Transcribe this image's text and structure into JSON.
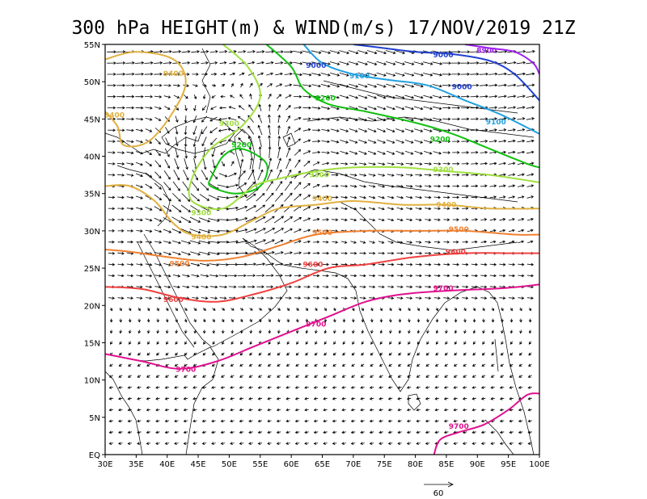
{
  "title": "300 hPa HEIGHT(m) & WIND(m/s) 17/NOV/2019 21Z",
  "axes": {
    "lon_labels": [
      "30E",
      "35E",
      "40E",
      "45E",
      "50E",
      "55E",
      "60E",
      "65E",
      "70E",
      "75E",
      "80E",
      "85E",
      "90E",
      "95E",
      "100E"
    ],
    "lat_labels": [
      "EQ",
      "5N",
      "10N",
      "15N",
      "20N",
      "25N",
      "30N",
      "35N",
      "40N",
      "45N",
      "50N",
      "55N"
    ],
    "lon_range": [
      30,
      100
    ],
    "lat_range": [
      0,
      55
    ]
  },
  "reference_vector": {
    "label": "60",
    "speed": 60
  },
  "contour_colors": {
    "8900": "#a020f0",
    "9000": "#2040d0",
    "9100": "#20a0e0",
    "9200": "#10c010",
    "9300": "#a0e040",
    "9400": "#e0b040",
    "9500": "#f08030",
    "9600": "#f04040",
    "9700": "#e0108e"
  },
  "contours": [
    {
      "level": "8900",
      "points": [
        [
          88,
          55
        ],
        [
          92,
          54.5
        ],
        [
          96,
          54
        ],
        [
          99,
          52.5
        ],
        [
          100,
          51
        ]
      ]
    },
    {
      "level": "9000",
      "points": [
        [
          70,
          55
        ],
        [
          75,
          54.5
        ],
        [
          80,
          54
        ],
        [
          86,
          53.7
        ],
        [
          92,
          52.8
        ],
        [
          96,
          51
        ],
        [
          100,
          47.5
        ]
      ]
    },
    {
      "level": "9100",
      "points": [
        [
          62,
          55
        ],
        [
          65,
          52.5
        ],
        [
          70,
          51
        ],
        [
          76,
          50.2
        ],
        [
          82,
          49.5
        ],
        [
          88,
          47.5
        ],
        [
          94,
          45.5
        ],
        [
          100,
          43
        ]
      ]
    },
    {
      "level": "9200",
      "points": [
        [
          56,
          55
        ],
        [
          60,
          52
        ],
        [
          62,
          49
        ],
        [
          66,
          47
        ],
        [
          72,
          46
        ],
        [
          80,
          44.5
        ],
        [
          86,
          43
        ],
        [
          92,
          41
        ],
        [
          98,
          39
        ],
        [
          100,
          38.5
        ]
      ]
    },
    {
      "level": "9200",
      "points": [
        [
          47,
          37
        ],
        [
          49,
          40
        ],
        [
          52,
          41
        ],
        [
          56,
          39
        ],
        [
          55,
          36
        ],
        [
          51,
          35
        ],
        [
          47,
          36
        ],
        [
          47,
          37
        ]
      ]
    },
    {
      "level": "9300",
      "points": [
        [
          49,
          55
        ],
        [
          53,
          52
        ],
        [
          55,
          48
        ],
        [
          52,
          44
        ],
        [
          47,
          41
        ],
        [
          44,
          37
        ],
        [
          44,
          34
        ],
        [
          49,
          33
        ],
        [
          54,
          36
        ],
        [
          58,
          37
        ],
        [
          64,
          38
        ],
        [
          70,
          38.5
        ],
        [
          78,
          38.5
        ],
        [
          85,
          38
        ],
        [
          92,
          37.5
        ],
        [
          100,
          36.5
        ]
      ]
    },
    {
      "level": "9400",
      "points": [
        [
          30,
          53
        ],
        [
          35,
          54
        ],
        [
          41,
          53
        ],
        [
          43,
          50
        ],
        [
          41,
          46
        ],
        [
          37,
          42
        ],
        [
          33,
          41.5
        ],
        [
          32,
          44
        ],
        [
          30,
          46
        ]
      ]
    },
    {
      "level": "9400",
      "points": [
        [
          30,
          36
        ],
        [
          34,
          36
        ],
        [
          38,
          34
        ],
        [
          41,
          31
        ],
        [
          44,
          29.5
        ],
        [
          49,
          29.5
        ],
        [
          54,
          31.5
        ],
        [
          58,
          33
        ],
        [
          64,
          33.5
        ],
        [
          70,
          34
        ],
        [
          78,
          33.5
        ],
        [
          85,
          33.5
        ],
        [
          92,
          33
        ],
        [
          100,
          33
        ]
      ]
    },
    {
      "level": "9500",
      "points": [
        [
          30,
          27.5
        ],
        [
          34,
          27.2
        ],
        [
          40,
          26.5
        ],
        [
          46,
          26
        ],
        [
          52,
          26.5
        ],
        [
          58,
          28
        ],
        [
          64,
          29.5
        ],
        [
          72,
          30
        ],
        [
          80,
          30
        ],
        [
          88,
          30
        ],
        [
          96,
          29.5
        ],
        [
          100,
          29.5
        ]
      ]
    },
    {
      "level": "9600",
      "points": [
        [
          30,
          22.5
        ],
        [
          36,
          22.2
        ],
        [
          42,
          21
        ],
        [
          48,
          20.5
        ],
        [
          54,
          21.5
        ],
        [
          60,
          23
        ],
        [
          66,
          25
        ],
        [
          72,
          25.5
        ],
        [
          80,
          26.5
        ],
        [
          88,
          27
        ],
        [
          96,
          27
        ],
        [
          100,
          27
        ]
      ]
    },
    {
      "level": "9700",
      "points": [
        [
          30,
          13.5
        ],
        [
          36,
          12.5
        ],
        [
          42,
          11.5
        ],
        [
          48,
          12.5
        ],
        [
          54,
          14.5
        ],
        [
          60,
          16.5
        ],
        [
          66,
          18.5
        ],
        [
          72,
          20.5
        ],
        [
          78,
          21.5
        ],
        [
          86,
          22
        ],
        [
          94,
          22.3
        ],
        [
          100,
          22.8
        ]
      ]
    },
    {
      "level": "9700",
      "points": [
        [
          83,
          0
        ],
        [
          84,
          2
        ],
        [
          87,
          3
        ],
        [
          91,
          4
        ],
        [
          95,
          6
        ],
        [
          98,
          8
        ],
        [
          100,
          8.2
        ]
      ]
    }
  ],
  "contour_labels": [
    {
      "text": "8900",
      "level": "8900",
      "lon": 91.5,
      "lat": 54.2
    },
    {
      "text": "9000",
      "level": "9000",
      "lon": 84.5,
      "lat": 53.6
    },
    {
      "text": "9000",
      "level": "9000",
      "lon": 64,
      "lat": 52.2
    },
    {
      "text": "9100",
      "level": "9100",
      "lon": 71,
      "lat": 50.8
    },
    {
      "text": "9000",
      "level": "9000",
      "lon": 87.5,
      "lat": 49.3
    },
    {
      "text": "9100",
      "level": "9100",
      "lon": 93,
      "lat": 44.6
    },
    {
      "text": "9200",
      "level": "9200",
      "lon": 65.5,
      "lat": 47.8
    },
    {
      "text": "9200",
      "level": "9200",
      "lon": 84,
      "lat": 42.3
    },
    {
      "text": "9200",
      "level": "9200",
      "lon": 52,
      "lat": 41.5
    },
    {
      "text": "9300",
      "level": "9300",
      "lon": 50,
      "lat": 44.4
    },
    {
      "text": "9300",
      "level": "9300",
      "lon": 64.5,
      "lat": 37.5
    },
    {
      "text": "9300",
      "level": "9300",
      "lon": 84.5,
      "lat": 38.2
    },
    {
      "text": "9300",
      "level": "9300",
      "lon": 45.5,
      "lat": 32.4
    },
    {
      "text": "9400",
      "level": "9400",
      "lon": 41,
      "lat": 51.1
    },
    {
      "text": "9400",
      "level": "9400",
      "lon": 31.5,
      "lat": 45.5
    },
    {
      "text": "9400",
      "level": "9400",
      "lon": 65,
      "lat": 34.3
    },
    {
      "text": "9400",
      "level": "9400",
      "lon": 85,
      "lat": 33.5
    },
    {
      "text": "9400",
      "level": "9400",
      "lon": 45.5,
      "lat": 29.2
    },
    {
      "text": "9500",
      "level": "9500",
      "lon": 65,
      "lat": 29.8
    },
    {
      "text": "9500",
      "level": "9500",
      "lon": 87,
      "lat": 30.2
    },
    {
      "text": "9500",
      "level": "9500",
      "lon": 42,
      "lat": 25.6
    },
    {
      "text": "9600",
      "level": "9600",
      "lon": 63.5,
      "lat": 25.5
    },
    {
      "text": "9600",
      "level": "9600",
      "lon": 86.5,
      "lat": 27.2
    },
    {
      "text": "9600",
      "level": "9600",
      "lon": 41,
      "lat": 20.8
    },
    {
      "text": "9700",
      "level": "9700",
      "lon": 64,
      "lat": 17.5
    },
    {
      "text": "9700",
      "level": "9700",
      "lon": 84.5,
      "lat": 22.3
    },
    {
      "text": "9700",
      "level": "9700",
      "lon": 43,
      "lat": 11.4
    },
    {
      "text": "9700",
      "level": "9700",
      "lon": 87,
      "lat": 3.8
    }
  ]
}
